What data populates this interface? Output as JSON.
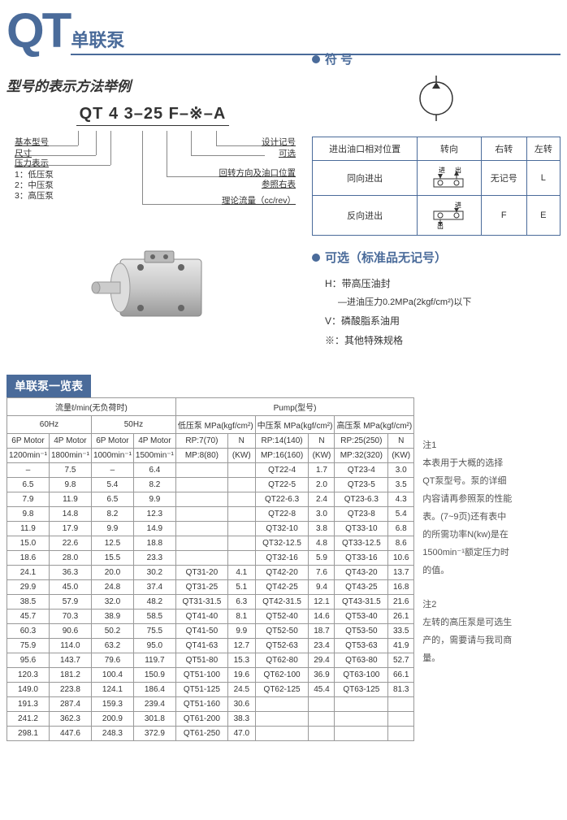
{
  "header": {
    "qt": "QT",
    "sub": "单联泵"
  },
  "left": {
    "section_title": "型号的表示方法举例",
    "model_code": "QT 4  3–25 F–※–A",
    "labels": {
      "base": "基本型号",
      "size": "尺寸",
      "press": "压力表示",
      "p1": "1：低压泵",
      "p2": "2：中压泵",
      "p3": "3：高压泵",
      "design": "设计记号",
      "opt": "可选",
      "dir1": "回转方向及油口位置",
      "dir2": "参照右表",
      "flow": "理论流量（cc/rev）"
    }
  },
  "right": {
    "symbol_title": "符 号",
    "dir_header1": "进出油口相对位置",
    "dir_header2": "转向",
    "dir_r": "右转",
    "dir_l": "左转",
    "same": "同向进出",
    "nomark": "无记号",
    "L": "L",
    "opp": "反向进出",
    "F": "F",
    "E": "E",
    "opt_title": "可选（标准品无记号）",
    "opt_h": "H：带高压油封",
    "opt_h_sub": "—进油压力0.2MPa(2kgf/cm²)以下",
    "opt_v": "V：磷酸脂系油用",
    "opt_x": "※：其他特殊规格"
  },
  "list_title": "单联泵一览表",
  "table": {
    "h_flow": "流量ℓ/min(无负荷时)",
    "h_pump": "Pump(型号)",
    "h_60": "60Hz",
    "h_50": "50Hz",
    "h_low": "低压泵 MPa(kgf/cm²)",
    "h_mid": "中压泵 MPa(kgf/cm²)",
    "h_high": "高压泵 MPa(kgf/cm²)",
    "h_6p": "6P Motor",
    "h_4p": "4P Motor",
    "h_1200": "1200min⁻¹",
    "h_1800": "1800min⁻¹",
    "h_1000": "1000min⁻¹",
    "h_1500": "1500min⁻¹",
    "h_rp7": "RP:7(70)",
    "h_mp8": "MP:8(80)",
    "h_rp14": "RP:14(140)",
    "h_mp16": "MP:16(160)",
    "h_rp25": "RP:25(250)",
    "h_mp32": "MP:32(320)",
    "h_n": "N",
    "h_kw": "(KW)",
    "rows": [
      [
        "–",
        "7.5",
        "–",
        "6.4",
        "",
        "",
        "QT22-4",
        "1.7",
        "QT23-4",
        "3.0"
      ],
      [
        "6.5",
        "9.8",
        "5.4",
        "8.2",
        "",
        "",
        "QT22-5",
        "2.0",
        "QT23-5",
        "3.5"
      ],
      [
        "7.9",
        "11.9",
        "6.5",
        "9.9",
        "",
        "",
        "QT22-6.3",
        "2.4",
        "QT23-6.3",
        "4.3"
      ],
      [
        "9.8",
        "14.8",
        "8.2",
        "12.3",
        "",
        "",
        "QT22-8",
        "3.0",
        "QT23-8",
        "5.4"
      ],
      [
        "11.9",
        "17.9",
        "9.9",
        "14.9",
        "",
        "",
        "QT32-10",
        "3.8",
        "QT33-10",
        "6.8"
      ],
      [
        "15.0",
        "22.6",
        "12.5",
        "18.8",
        "",
        "",
        "QT32-12.5",
        "4.8",
        "QT33-12.5",
        "8.6"
      ],
      [
        "18.6",
        "28.0",
        "15.5",
        "23.3",
        "",
        "",
        "QT32-16",
        "5.9",
        "QT33-16",
        "10.6"
      ],
      [
        "24.1",
        "36.3",
        "20.0",
        "30.2",
        "QT31-20",
        "4.1",
        "QT42-20",
        "7.6",
        "QT43-20",
        "13.7"
      ],
      [
        "29.9",
        "45.0",
        "24.8",
        "37.4",
        "QT31-25",
        "5.1",
        "QT42-25",
        "9.4",
        "QT43-25",
        "16.8"
      ],
      [
        "38.5",
        "57.9",
        "32.0",
        "48.2",
        "QT31-31.5",
        "6.3",
        "QT42-31.5",
        "12.1",
        "QT43-31.5",
        "21.6"
      ],
      [
        "45.7",
        "70.3",
        "38.9",
        "58.5",
        "QT41-40",
        "8.1",
        "QT52-40",
        "14.6",
        "QT53-40",
        "26.1"
      ],
      [
        "60.3",
        "90.6",
        "50.2",
        "75.5",
        "QT41-50",
        "9.9",
        "QT52-50",
        "18.7",
        "QT53-50",
        "33.5"
      ],
      [
        "75.9",
        "114.0",
        "63.2",
        "95.0",
        "QT41-63",
        "12.7",
        "QT52-63",
        "23.4",
        "QT53-63",
        "41.9"
      ],
      [
        "95.6",
        "143.7",
        "79.6",
        "119.7",
        "QT51-80",
        "15.3",
        "QT62-80",
        "29.4",
        "QT63-80",
        "52.7"
      ],
      [
        "120.3",
        "181.2",
        "100.4",
        "150.9",
        "QT51-100",
        "19.6",
        "QT62-100",
        "36.9",
        "QT63-100",
        "66.1"
      ],
      [
        "149.0",
        "223.8",
        "124.1",
        "186.4",
        "QT51-125",
        "24.5",
        "QT62-125",
        "45.4",
        "QT63-125",
        "81.3"
      ],
      [
        "191.3",
        "287.4",
        "159.3",
        "239.4",
        "QT51-160",
        "30.6",
        "",
        "",
        "",
        ""
      ],
      [
        "241.2",
        "362.3",
        "200.9",
        "301.8",
        "QT61-200",
        "38.3",
        "",
        "",
        "",
        ""
      ],
      [
        "298.1",
        "447.6",
        "248.3",
        "372.9",
        "QT61-250",
        "47.0",
        "",
        "",
        "",
        ""
      ]
    ]
  },
  "notes": {
    "n1t": "注1",
    "n1": "本表用于大概的选择QT泵型号。泵的详细内容请再参照泵的性能表。(7~9页)还有表中的所需功率N(kw)是在1500min⁻¹额定压力时的值。",
    "n2t": "注2",
    "n2": "左转的高压泵是可选生产的，需要请与我司商量。"
  }
}
